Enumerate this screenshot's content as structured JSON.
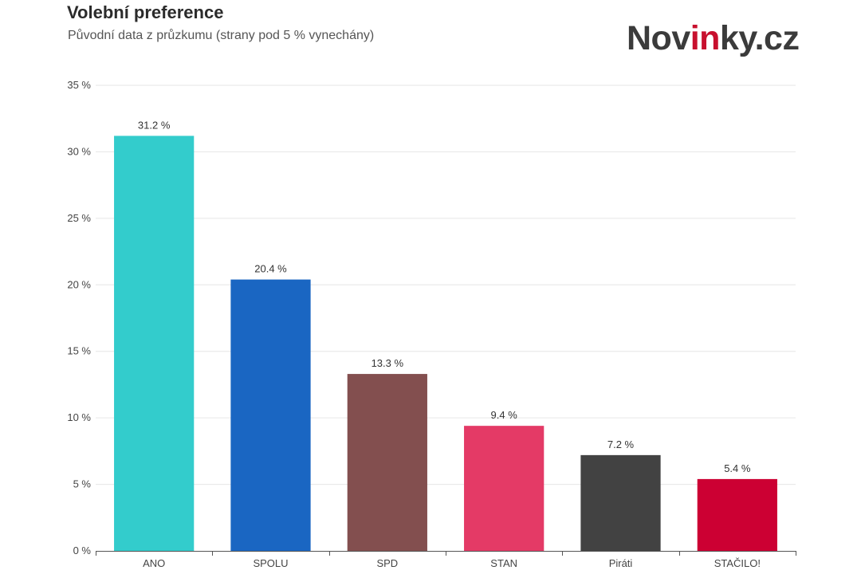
{
  "header": {
    "title": "Volební preference",
    "subtitle": "Původní data z průzkumu (strany pod 5 % vynechány)"
  },
  "brand": {
    "logo_text_part1": "Nov",
    "logo_text_accent": "in",
    "logo_text_part2": "ky.cz",
    "accent_color": "#c8102e"
  },
  "chart_data": {
    "type": "bar",
    "title": "Volební preference",
    "subtitle": "Původní data z průzkumu (strany pod 5 % vynechány)",
    "categories": [
      "ANO",
      "SPOLU",
      "SPD",
      "STAN",
      "Piráti",
      "STAČILO!"
    ],
    "values": [
      31.2,
      20.4,
      13.3,
      9.4,
      7.2,
      5.4
    ],
    "data_labels": [
      "31.2 %",
      "20.4 %",
      "13.3 %",
      "9.4 %",
      "7.2 %",
      "5.4 %"
    ],
    "colors": [
      "#33cccc",
      "#1a66c2",
      "#834f4f",
      "#e43a66",
      "#424242",
      "#cc0033"
    ],
    "ylim": [
      0,
      35
    ],
    "yticks": [
      0,
      5,
      10,
      15,
      20,
      25,
      30,
      35
    ],
    "ytick_labels": [
      "0 %",
      "5 %",
      "10 %",
      "15 %",
      "20 %",
      "25 %",
      "30 %",
      "35 %"
    ],
    "xlabel": "",
    "ylabel": "",
    "grid": true,
    "legend": "none"
  }
}
